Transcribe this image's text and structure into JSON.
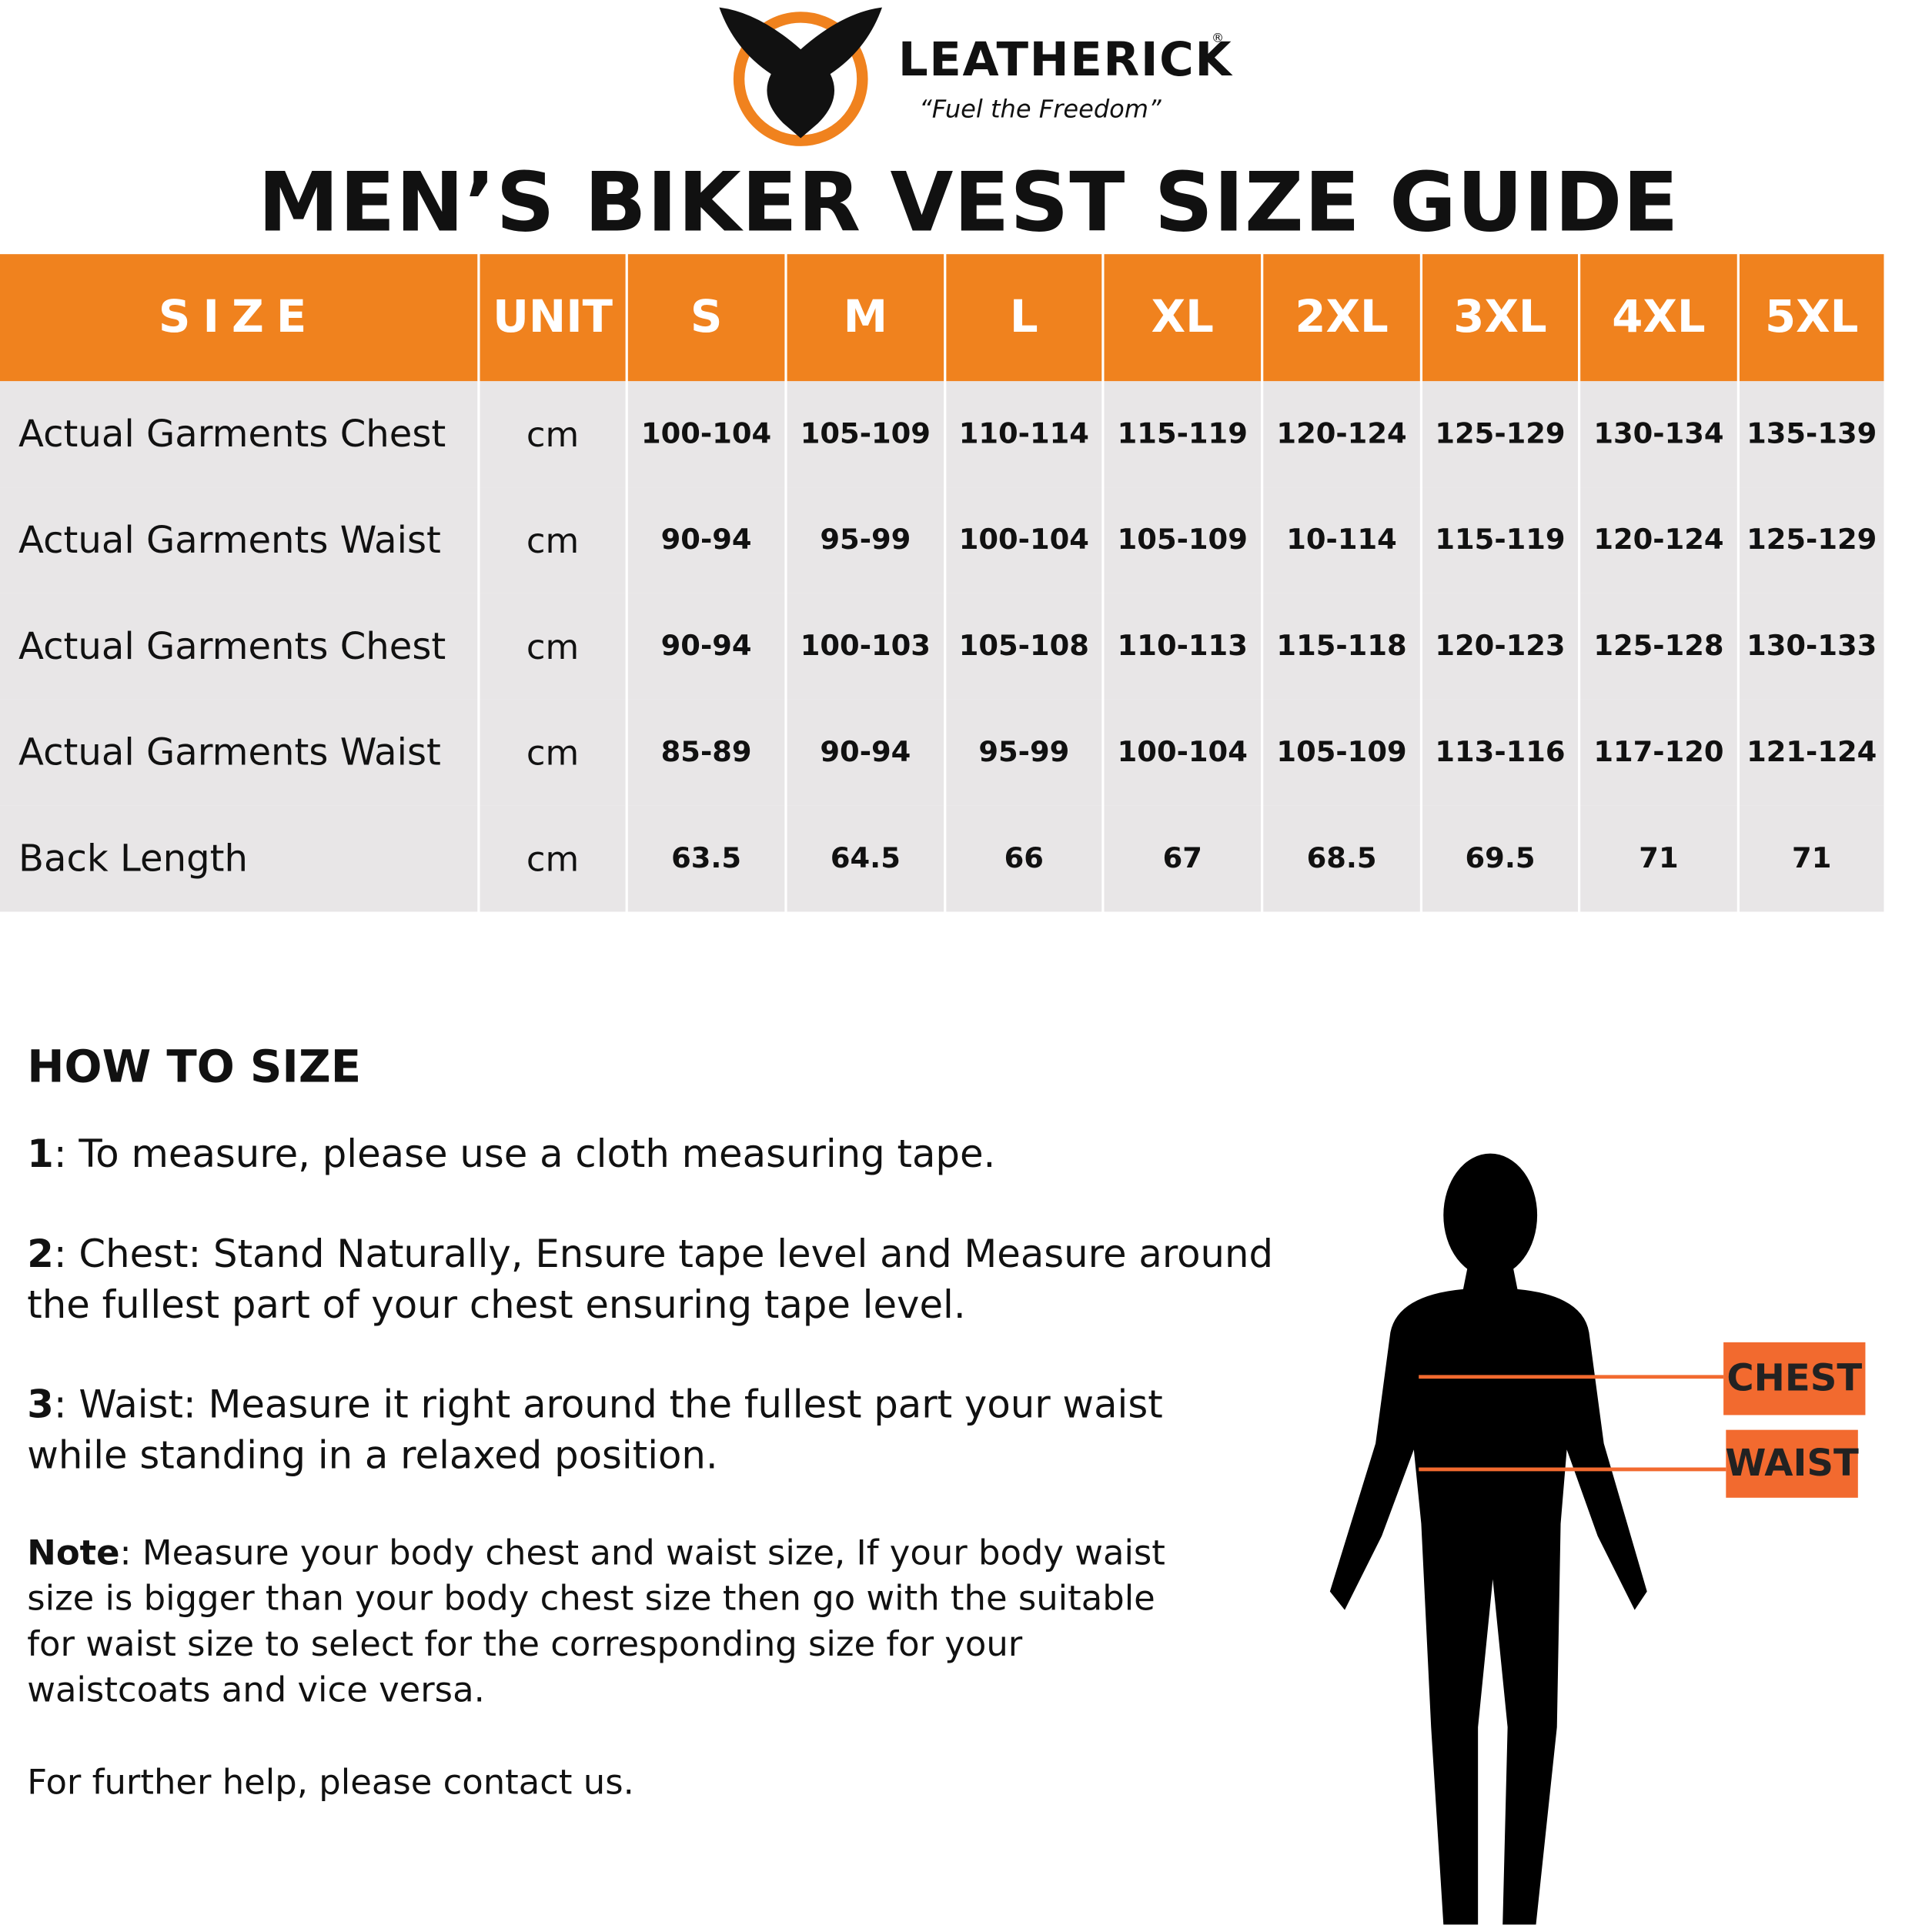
{
  "header": {
    "brand": "LEATHERICK",
    "registered": "®",
    "tagline": "“Fuel the Freedom”",
    "title": "MEN’S BIKER VEST SIZE GUIDE"
  },
  "table": {
    "columns": [
      "SIZE",
      "UNIT",
      "S",
      "M",
      "L",
      "XL",
      "2XL",
      "3XL",
      "4XL",
      "5XL"
    ],
    "rows": [
      [
        "Actual Garments Chest",
        "cm",
        "100-104",
        "105-109",
        "110-114",
        "115-119",
        "120-124",
        "125-129",
        "130-134",
        "135-139"
      ],
      [
        "Actual Garments Waist",
        "cm",
        "90-94",
        "95-99",
        "100-104",
        "105-109",
        "10-114",
        "115-119",
        "120-124",
        "125-129"
      ],
      [
        "Actual Garments Chest",
        "cm",
        "90-94",
        "100-103",
        "105-108",
        "110-113",
        "115-118",
        "120-123",
        "125-128",
        "130-133"
      ],
      [
        "Actual Garments Waist",
        "cm",
        "85-89",
        "90-94",
        "95-99",
        "100-104",
        "105-109",
        "113-116",
        "117-120",
        "121-124"
      ],
      [
        "Back Length",
        "cm",
        "63.5",
        "64.5",
        "66",
        "67",
        "68.5",
        "69.5",
        "71",
        "71"
      ]
    ]
  },
  "how_to": {
    "heading": "HOW TO SIZE",
    "steps": [
      {
        "number": "1",
        "text": ": To measure, please use a cloth measuring tape."
      },
      {
        "number": "2",
        "text": ": Chest: Stand Naturally, Ensure tape level and Measure around the fullest part of your chest ensuring tape level."
      },
      {
        "number": "3",
        "text": ": Waist: Measure it right around the fullest part your waist while standing in a relaxed position."
      }
    ],
    "note": {
      "label": "Note",
      "text": ": Measure your body chest and waist size, If your body waist size is bigger than your body chest size then go with the suitable for waist size to select for the corresponding size for your waistcoats and vice versa."
    },
    "footer": "For further help, please contact us."
  },
  "figure": {
    "chest_label": "CHEST",
    "waist_label": "WAIST"
  }
}
